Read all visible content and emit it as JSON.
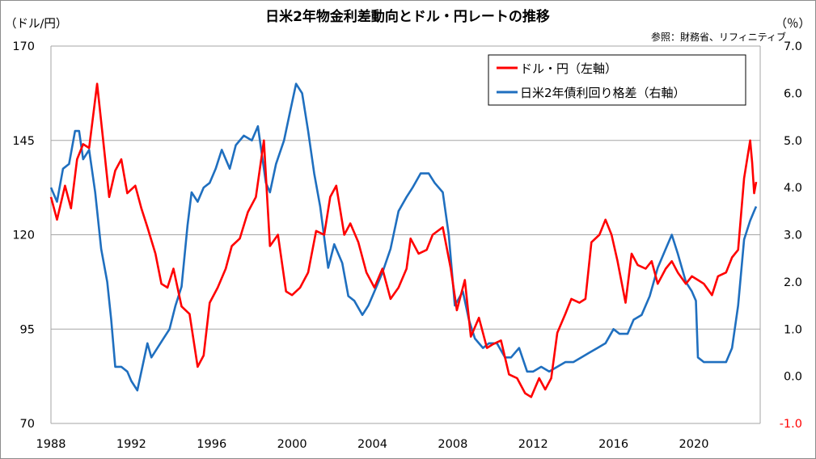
{
  "chart_data": {
    "type": "line",
    "title": "日米2年物金利差動向とドル・円レートの推移",
    "source": "参照：財務省、リフィニティブ",
    "ylabel_left": "（ドル/円）",
    "ylabel_right": "（％）",
    "xlim": [
      1988,
      2023.3
    ],
    "ylim_left": [
      70,
      170
    ],
    "ylim_right": [
      -1.0,
      7.0
    ],
    "x_ticks": [
      "1988",
      "1992",
      "1996",
      "2000",
      "2004",
      "2008",
      "2012",
      "2016",
      "2020"
    ],
    "y_left_ticks": [
      "170",
      "145",
      "120",
      "95",
      "70"
    ],
    "y_right_ticks": [
      "7.0",
      "6.0",
      "5.0",
      "4.0",
      "3.0",
      "2.0",
      "1.0",
      "0.0",
      "-1.0"
    ],
    "grid": true,
    "legend_position": "top-right",
    "series": [
      {
        "name": "ドル・円（左軸）",
        "color": "#ff0000",
        "axis": "left",
        "points": [
          [
            1988.0,
            130
          ],
          [
            1988.3,
            124
          ],
          [
            1988.7,
            133
          ],
          [
            1989.0,
            127
          ],
          [
            1989.3,
            140
          ],
          [
            1989.6,
            144
          ],
          [
            1989.9,
            143
          ],
          [
            1990.3,
            160
          ],
          [
            1990.6,
            145
          ],
          [
            1990.9,
            130
          ],
          [
            1991.2,
            137
          ],
          [
            1991.5,
            140
          ],
          [
            1991.8,
            131
          ],
          [
            1992.2,
            133
          ],
          [
            1992.5,
            127
          ],
          [
            1992.8,
            122
          ],
          [
            1993.2,
            115
          ],
          [
            1993.5,
            107
          ],
          [
            1993.8,
            106
          ],
          [
            1994.1,
            111
          ],
          [
            1994.5,
            101
          ],
          [
            1994.9,
            99
          ],
          [
            1995.3,
            85
          ],
          [
            1995.6,
            88
          ],
          [
            1995.9,
            102
          ],
          [
            1996.3,
            106
          ],
          [
            1996.7,
            111
          ],
          [
            1997.0,
            117
          ],
          [
            1997.4,
            119
          ],
          [
            1997.8,
            126
          ],
          [
            1998.2,
            130
          ],
          [
            1998.6,
            145
          ],
          [
            1998.9,
            117
          ],
          [
            1999.3,
            120
          ],
          [
            1999.7,
            105
          ],
          [
            2000.0,
            104
          ],
          [
            2000.4,
            106
          ],
          [
            2000.8,
            110
          ],
          [
            2001.2,
            121
          ],
          [
            2001.6,
            120
          ],
          [
            2001.9,
            130
          ],
          [
            2002.2,
            133
          ],
          [
            2002.6,
            120
          ],
          [
            2002.9,
            123
          ],
          [
            2003.3,
            118
          ],
          [
            2003.7,
            110
          ],
          [
            2004.1,
            106
          ],
          [
            2004.5,
            111
          ],
          [
            2004.9,
            103
          ],
          [
            2005.3,
            106
          ],
          [
            2005.7,
            111
          ],
          [
            2005.9,
            119
          ],
          [
            2006.3,
            115
          ],
          [
            2006.7,
            116
          ],
          [
            2007.0,
            120
          ],
          [
            2007.5,
            122
          ],
          [
            2007.9,
            111
          ],
          [
            2008.2,
            100
          ],
          [
            2008.6,
            108
          ],
          [
            2008.9,
            93
          ],
          [
            2009.3,
            98
          ],
          [
            2009.7,
            90
          ],
          [
            2010.0,
            91
          ],
          [
            2010.4,
            92
          ],
          [
            2010.8,
            83
          ],
          [
            2011.2,
            82
          ],
          [
            2011.6,
            78
          ],
          [
            2011.9,
            77
          ],
          [
            2012.3,
            82
          ],
          [
            2012.6,
            79
          ],
          [
            2012.9,
            82
          ],
          [
            2013.2,
            94
          ],
          [
            2013.6,
            99
          ],
          [
            2013.9,
            103
          ],
          [
            2014.3,
            102
          ],
          [
            2014.6,
            103
          ],
          [
            2014.9,
            118
          ],
          [
            2015.3,
            120
          ],
          [
            2015.6,
            124
          ],
          [
            2015.9,
            120
          ],
          [
            2016.2,
            113
          ],
          [
            2016.6,
            102
          ],
          [
            2016.9,
            115
          ],
          [
            2017.2,
            112
          ],
          [
            2017.6,
            111
          ],
          [
            2017.9,
            113
          ],
          [
            2018.2,
            107
          ],
          [
            2018.6,
            111
          ],
          [
            2018.9,
            113
          ],
          [
            2019.2,
            110
          ],
          [
            2019.6,
            107
          ],
          [
            2019.9,
            109
          ],
          [
            2020.2,
            108
          ],
          [
            2020.5,
            107
          ],
          [
            2020.9,
            104
          ],
          [
            2021.2,
            109
          ],
          [
            2021.6,
            110
          ],
          [
            2021.9,
            114
          ],
          [
            2022.2,
            116
          ],
          [
            2022.5,
            135
          ],
          [
            2022.8,
            145
          ],
          [
            2022.9,
            139
          ],
          [
            2023.0,
            131
          ],
          [
            2023.1,
            134
          ]
        ]
      },
      {
        "name": "日米2年債利回り格差（右軸）",
        "color": "#1f6fbf",
        "axis": "right",
        "points": [
          [
            1988.0,
            4.0
          ],
          [
            1988.3,
            3.7
          ],
          [
            1988.6,
            4.4
          ],
          [
            1988.9,
            4.5
          ],
          [
            1989.2,
            5.2
          ],
          [
            1989.4,
            5.2
          ],
          [
            1989.6,
            4.6
          ],
          [
            1989.9,
            4.8
          ],
          [
            1990.2,
            3.9
          ],
          [
            1990.5,
            2.7
          ],
          [
            1990.8,
            2.0
          ],
          [
            1991.0,
            1.2
          ],
          [
            1991.2,
            0.2
          ],
          [
            1991.5,
            0.2
          ],
          [
            1991.8,
            0.1
          ],
          [
            1992.0,
            -0.1
          ],
          [
            1992.3,
            -0.3
          ],
          [
            1992.5,
            0.1
          ],
          [
            1992.8,
            0.7
          ],
          [
            1993.0,
            0.4
          ],
          [
            1993.3,
            0.6
          ],
          [
            1993.6,
            0.8
          ],
          [
            1993.9,
            1.0
          ],
          [
            1994.2,
            1.5
          ],
          [
            1994.5,
            1.9
          ],
          [
            1994.8,
            3.2
          ],
          [
            1995.0,
            3.9
          ],
          [
            1995.3,
            3.7
          ],
          [
            1995.6,
            4.0
          ],
          [
            1995.9,
            4.1
          ],
          [
            1996.2,
            4.4
          ],
          [
            1996.5,
            4.8
          ],
          [
            1996.9,
            4.4
          ],
          [
            1997.2,
            4.9
          ],
          [
            1997.6,
            5.1
          ],
          [
            1998.0,
            5.0
          ],
          [
            1998.3,
            5.3
          ],
          [
            1998.7,
            4.1
          ],
          [
            1998.9,
            3.9
          ],
          [
            1999.2,
            4.5
          ],
          [
            1999.6,
            5.0
          ],
          [
            1999.9,
            5.6
          ],
          [
            2000.2,
            6.2
          ],
          [
            2000.5,
            6.0
          ],
          [
            2000.8,
            5.2
          ],
          [
            2001.1,
            4.3
          ],
          [
            2001.4,
            3.6
          ],
          [
            2001.8,
            2.3
          ],
          [
            2002.1,
            2.8
          ],
          [
            2002.5,
            2.4
          ],
          [
            2002.8,
            1.7
          ],
          [
            2003.1,
            1.6
          ],
          [
            2003.5,
            1.3
          ],
          [
            2003.8,
            1.5
          ],
          [
            2004.1,
            1.8
          ],
          [
            2004.5,
            2.2
          ],
          [
            2004.9,
            2.7
          ],
          [
            2005.3,
            3.5
          ],
          [
            2005.7,
            3.8
          ],
          [
            2006.0,
            4.0
          ],
          [
            2006.4,
            4.3
          ],
          [
            2006.8,
            4.3
          ],
          [
            2007.1,
            4.1
          ],
          [
            2007.5,
            3.9
          ],
          [
            2007.8,
            3.0
          ],
          [
            2008.1,
            1.5
          ],
          [
            2008.5,
            1.8
          ],
          [
            2008.8,
            1.2
          ],
          [
            2009.1,
            0.8
          ],
          [
            2009.5,
            0.6
          ],
          [
            2009.8,
            0.7
          ],
          [
            2010.2,
            0.7
          ],
          [
            2010.6,
            0.4
          ],
          [
            2010.9,
            0.4
          ],
          [
            2011.3,
            0.6
          ],
          [
            2011.7,
            0.1
          ],
          [
            2012.0,
            0.1
          ],
          [
            2012.4,
            0.2
          ],
          [
            2012.8,
            0.1
          ],
          [
            2013.2,
            0.2
          ],
          [
            2013.6,
            0.3
          ],
          [
            2014.0,
            0.3
          ],
          [
            2014.4,
            0.4
          ],
          [
            2014.8,
            0.5
          ],
          [
            2015.2,
            0.6
          ],
          [
            2015.6,
            0.7
          ],
          [
            2016.0,
            1.0
          ],
          [
            2016.3,
            0.9
          ],
          [
            2016.7,
            0.9
          ],
          [
            2017.0,
            1.2
          ],
          [
            2017.4,
            1.3
          ],
          [
            2017.8,
            1.7
          ],
          [
            2018.2,
            2.3
          ],
          [
            2018.6,
            2.7
          ],
          [
            2018.9,
            3.0
          ],
          [
            2019.2,
            2.6
          ],
          [
            2019.6,
            2.0
          ],
          [
            2019.9,
            1.8
          ],
          [
            2020.1,
            1.6
          ],
          [
            2020.2,
            0.4
          ],
          [
            2020.5,
            0.3
          ],
          [
            2020.9,
            0.3
          ],
          [
            2021.2,
            0.3
          ],
          [
            2021.6,
            0.3
          ],
          [
            2021.9,
            0.6
          ],
          [
            2022.2,
            1.5
          ],
          [
            2022.5,
            2.9
          ],
          [
            2022.8,
            3.3
          ],
          [
            2023.0,
            3.5
          ],
          [
            2023.1,
            3.6
          ]
        ]
      }
    ]
  }
}
